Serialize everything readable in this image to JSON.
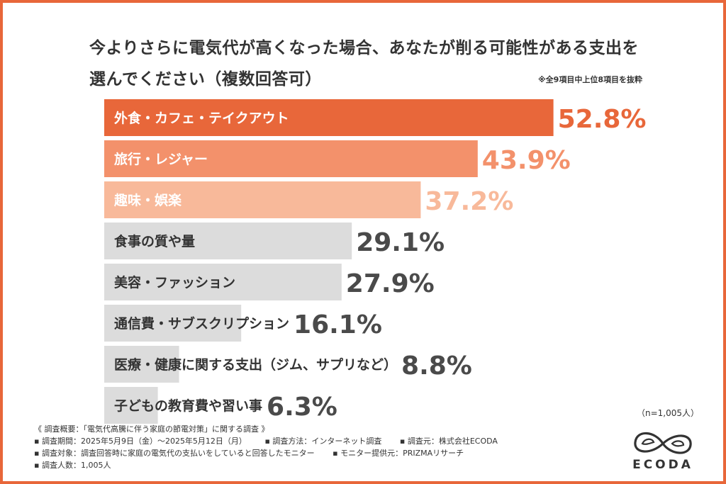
{
  "chart_data": {
    "type": "bar",
    "orientation": "horizontal",
    "title": "今よりさらに電気代が高くなった場合、あなたが削る可能性がある支出を選んでください（複数回答可）",
    "note": "※全9項目中上位8項目を抜粋",
    "categories": [
      "外食・カフェ・テイクアウト",
      "旅行・レジャー",
      "趣味・娯楽",
      "食事の質や量",
      "美容・ファッション",
      "通信費・サブスクリプション",
      "医療・健康に関する支出（ジム、サプリなど）",
      "子どもの教育費や習い事"
    ],
    "values": [
      52.8,
      43.9,
      37.2,
      29.1,
      27.9,
      16.1,
      8.8,
      6.3
    ],
    "value_labels": [
      "52.8%",
      "43.9%",
      "37.2%",
      "29.1%",
      "27.9%",
      "16.1%",
      "8.8%",
      "6.3%"
    ],
    "unit": "%",
    "xlim": [
      0,
      60
    ],
    "grid": false,
    "legend": "none",
    "colors": {
      "rank1": "#e8673a",
      "rank2": "#f3916b",
      "rank3": "#f8b99a",
      "other": "#dcdcdc",
      "text_dark": "#333333",
      "text_light": "#ffffff"
    }
  },
  "sample_size": "（n=1,005人）",
  "footer": {
    "heading": "《 調査概要：「電気代高騰に伴う家庭の節電対策」に関する調査 》",
    "period": "▪ 調査期間：2025年5月9日（金）～2025年5月12日（月）",
    "method": "▪ 調査方法：インターネット調査",
    "organizer": "▪ 調査元：株式会社ECODA",
    "target": "▪ 調査対象：調査回答時に家庭の電気代の支払いをしていると回答したモニター",
    "provider": "▪ モニター提供元：PRIZMAリサーチ",
    "respondents": "▪ 調査人数：1,005人"
  },
  "logo": {
    "text": "ECODA",
    "icon": "infinity-leaf-icon",
    "color": "#333333"
  }
}
